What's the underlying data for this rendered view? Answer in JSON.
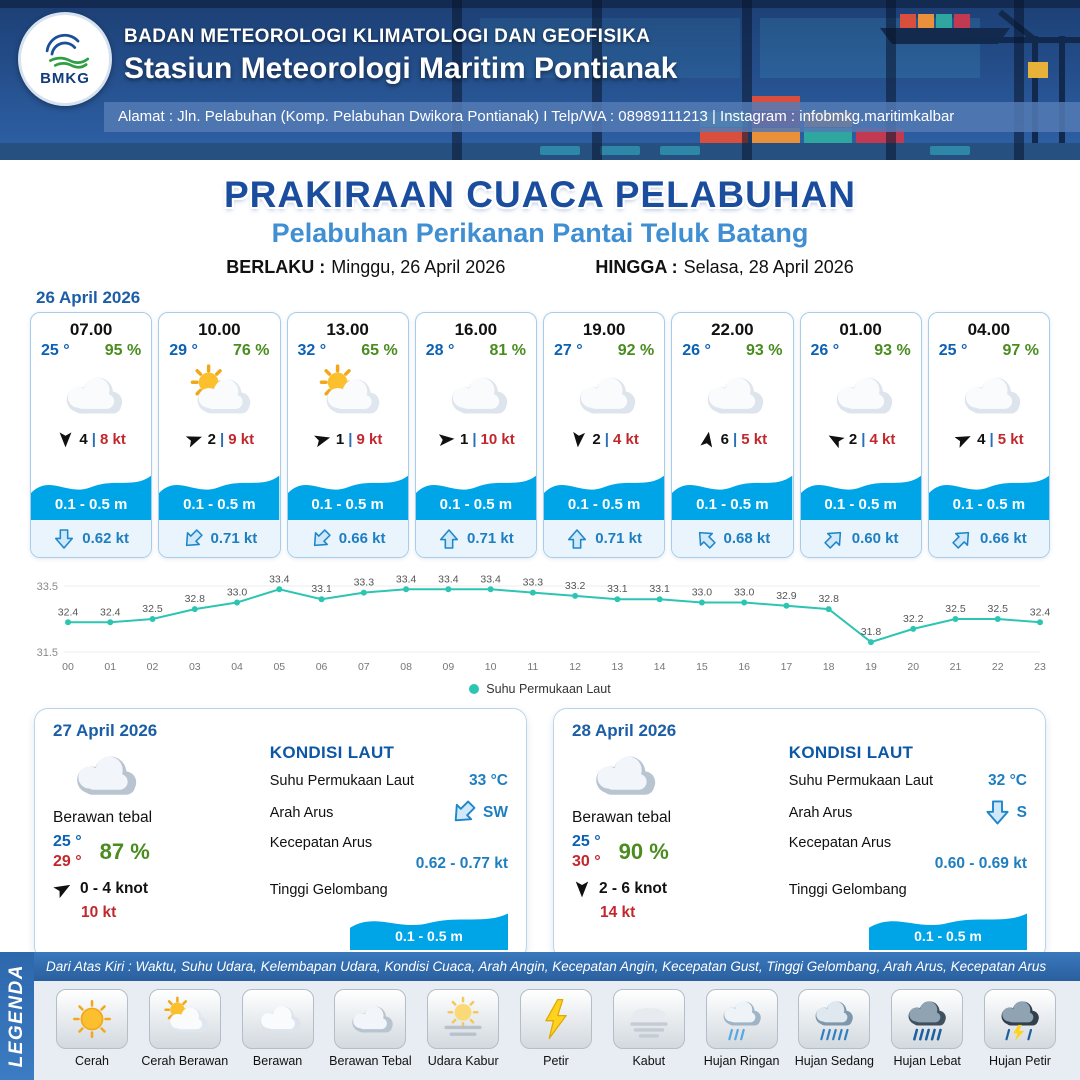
{
  "header": {
    "logo_text": "BMKG",
    "org_line1": "BADAN METEOROLOGI KLIMATOLOGI DAN GEOFISIKA",
    "org_line2": "Stasiun Meteorologi Maritim Pontianak",
    "address": "Alamat : Jln. Pelabuhan (Komp. Pelabuhan Dwikora Pontianak) I Telp/WA : 08989111213 | Instagram : infobmkg.maritimkalbar"
  },
  "title": {
    "main": "PRAKIRAAN CUACA PELABUHAN",
    "subtitle": "Pelabuhan Perikanan Pantai Teluk Batang",
    "valid_from_label": "BERLAKU :",
    "valid_from": "Minggu, 26 April 2026",
    "valid_to_label": "HINGGA :",
    "valid_to": "Selasa, 28 April 2026"
  },
  "forecast": {
    "date": "26 April 2026",
    "sep": "|",
    "cards": [
      {
        "time": "07.00",
        "temp": "25 °",
        "humidity": "95 %",
        "weather_icon": "cloud",
        "wind_deg": 180,
        "wind_speed": "4",
        "gust": "8 kt",
        "wave": "0.1 - 0.5 m",
        "current_deg": 180,
        "current": "0.62 kt"
      },
      {
        "time": "10.00",
        "temp": "29 °",
        "humidity": "76 %",
        "weather_icon": "sun-cloud",
        "wind_deg": 70,
        "wind_speed": "2",
        "gust": "9 kt",
        "wave": "0.1 - 0.5 m",
        "current_deg": 225,
        "current": "0.71 kt"
      },
      {
        "time": "13.00",
        "temp": "32 °",
        "humidity": "65 %",
        "weather_icon": "sun-cloud",
        "wind_deg": 75,
        "wind_speed": "1",
        "gust": "9 kt",
        "wave": "0.1 - 0.5 m",
        "current_deg": 225,
        "current": "0.66 kt"
      },
      {
        "time": "16.00",
        "temp": "28 °",
        "humidity": "81 %",
        "weather_icon": "cloud",
        "wind_deg": 85,
        "wind_speed": "1",
        "gust": "10 kt",
        "wave": "0.1 - 0.5 m",
        "current_deg": 0,
        "current": "0.71 kt"
      },
      {
        "time": "19.00",
        "temp": "27 °",
        "humidity": "92 %",
        "weather_icon": "cloud",
        "wind_deg": 185,
        "wind_speed": "2",
        "gust": "4 kt",
        "wave": "0.1 - 0.5 m",
        "current_deg": 0,
        "current": "0.71 kt"
      },
      {
        "time": "22.00",
        "temp": "26 °",
        "humidity": "93 %",
        "weather_icon": "cloud",
        "wind_deg": 10,
        "wind_speed": "6",
        "gust": "5 kt",
        "wave": "0.1 - 0.5 m",
        "current_deg": 315,
        "current": "0.68 kt"
      },
      {
        "time": "01.00",
        "temp": "26 °",
        "humidity": "93 %",
        "weather_icon": "cloud",
        "wind_deg": 300,
        "wind_speed": "2",
        "gust": "4 kt",
        "wave": "0.1 - 0.5 m",
        "current_deg": 45,
        "current": "0.60 kt"
      },
      {
        "time": "04.00",
        "temp": "25 °",
        "humidity": "97 %",
        "weather_icon": "cloud",
        "wind_deg": 65,
        "wind_speed": "4",
        "gust": "5 kt",
        "wave": "0.1 - 0.5 m",
        "current_deg": 45,
        "current": "0.66 kt"
      }
    ]
  },
  "chart_data": {
    "type": "line",
    "legend": "Suhu Permukaan Laut",
    "x": [
      "00",
      "01",
      "02",
      "03",
      "04",
      "05",
      "06",
      "07",
      "08",
      "09",
      "10",
      "11",
      "12",
      "13",
      "14",
      "15",
      "16",
      "17",
      "18",
      "19",
      "20",
      "21",
      "22",
      "23"
    ],
    "values": [
      32.4,
      32.4,
      32.5,
      32.8,
      33.0,
      33.4,
      33.1,
      33.3,
      33.4,
      33.4,
      33.4,
      33.3,
      33.2,
      33.1,
      33.1,
      33.0,
      33.0,
      32.9,
      32.8,
      31.8,
      32.2,
      32.5,
      32.5,
      32.4
    ],
    "ylim": [
      31.5,
      33.5
    ],
    "yticks": [
      33.5,
      31.5
    ],
    "line_color": "#2cc5b2"
  },
  "days": [
    {
      "date": "27 April 2026",
      "weather_icon": "cloud-thick",
      "weather_text": "Berawan tebal",
      "temp_min": "25 °",
      "temp_max": "29 °",
      "humidity": "87 %",
      "wind_deg": 60,
      "wind_range": "0 - 4 knot",
      "gust": "10 kt",
      "sea": {
        "title": "KONDISI LAUT",
        "sst_label": "Suhu Permukaan Laut",
        "sst": "33 °C",
        "current_dir_label": "Arah Arus",
        "current_dir_deg": 225,
        "current_dir": "SW",
        "current_speed_label": "Kecepatan Arus",
        "current_speed": "0.62 - 0.77 kt",
        "wave_label": "Tinggi Gelombang",
        "wave": "0.1 - 0.5 m"
      }
    },
    {
      "date": "28 April 2026",
      "weather_icon": "cloud-thick",
      "weather_text": "Berawan tebal",
      "temp_min": "25 °",
      "temp_max": "30 °",
      "humidity": "90 %",
      "wind_deg": 180,
      "wind_range": "2 - 6 knot",
      "gust": "14 kt",
      "sea": {
        "title": "KONDISI LAUT",
        "sst_label": "Suhu Permukaan Laut",
        "sst": "32 °C",
        "current_dir_label": "Arah Arus",
        "current_dir_deg": 180,
        "current_dir": "S",
        "current_speed_label": "Kecepatan Arus",
        "current_speed": "0.60 - 0.69 kt",
        "wave_label": "Tinggi Gelombang",
        "wave": "0.1 - 0.5 m"
      }
    }
  ],
  "legend": {
    "title": "LEGENDA",
    "note": "Dari Atas Kiri : Waktu, Suhu Udara, Kelembapan Udara, Kondisi Cuaca, Arah Angin, Kecepatan Angin, Kecepatan Gust, Tinggi Gelombang, Arah Arus, Kecepatan Arus",
    "items": [
      {
        "label": "Cerah",
        "icon": "sun"
      },
      {
        "label": "Cerah Berawan",
        "icon": "sun-cloud"
      },
      {
        "label": "Berawan",
        "icon": "cloud"
      },
      {
        "label": "Berawan Tebal",
        "icon": "cloud-thick"
      },
      {
        "label": "Udara Kabur",
        "icon": "haze"
      },
      {
        "label": "Petir",
        "icon": "lightning"
      },
      {
        "label": "Kabut",
        "icon": "fog"
      },
      {
        "label": "Hujan Ringan",
        "icon": "rain-light"
      },
      {
        "label": "Hujan Sedang",
        "icon": "rain-moderate"
      },
      {
        "label": "Hujan Lebat",
        "icon": "rain-heavy"
      },
      {
        "label": "Hujan Petir",
        "icon": "rain-thunder"
      }
    ]
  },
  "colors": {
    "header_navy": "#1c3f74",
    "title_blue": "#1b4d9e",
    "subtitle_blue": "#3f8fd2",
    "temp_blue": "#0b61b3",
    "humidity_green": "#4a8c1f",
    "gust_red": "#c2272d",
    "wave_blue": "#00a5e8",
    "current_blue": "#1e7ec0",
    "chart_teal": "#2cc5b2"
  }
}
